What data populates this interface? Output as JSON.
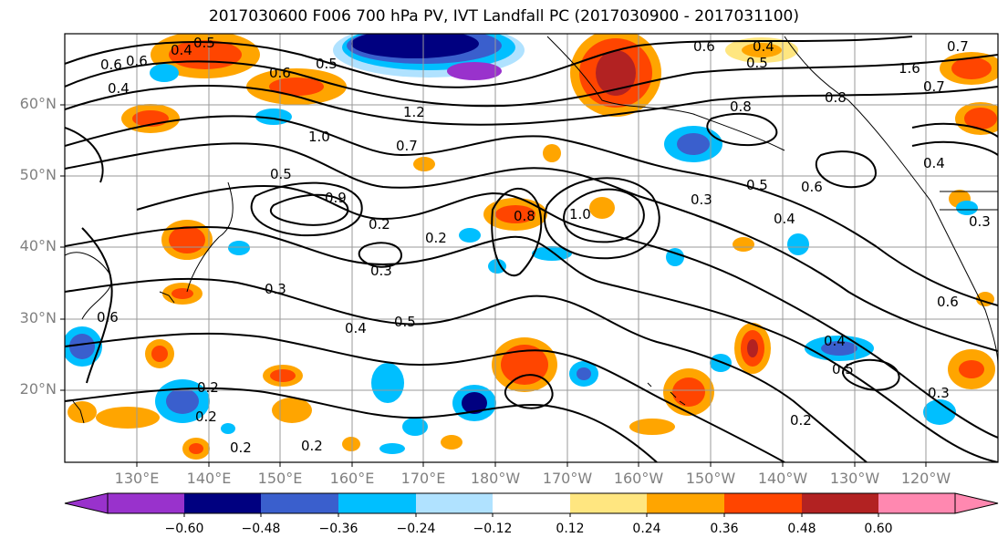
{
  "title": "2017030600 F006 700 hPa PV, IVT Landfall PC (2017030900 - 2017031100)",
  "lat_labels": [
    "60°N",
    "50°N",
    "40°N",
    "30°N",
    "20°N"
  ],
  "lon_labels": [
    "130°E",
    "140°E",
    "150°E",
    "160°E",
    "170°E",
    "180°W",
    "170°W",
    "160°W",
    "150°W",
    "140°W",
    "130°W",
    "120°W"
  ],
  "colorbar": {
    "tick_labels": [
      "−0.60",
      "−0.48",
      "−0.36",
      "−0.24",
      "−0.12",
      "0.12",
      "0.24",
      "0.36",
      "0.48",
      "0.60"
    ],
    "colors": [
      "#9932cc",
      "#000080",
      "#3a5fcd",
      "#00bfff",
      "#b0e2ff",
      "#ffffff",
      "#ffe680",
      "#ffa500",
      "#ff4500",
      "#b22222",
      "#ff88b0"
    ]
  },
  "contour_labels": [
    "0.5",
    "0.6",
    "0.4",
    "0.6",
    "0.5",
    "1.2",
    "1.0",
    "0.7",
    "0.5",
    "0.9",
    "0.2",
    "0.2",
    "0.3",
    "0.3",
    "0.5",
    "0.4",
    "0.2",
    "0.2",
    "0.2",
    "0.6",
    "1.0",
    "0.8",
    "0.3",
    "0.5",
    "0.6",
    "0.4",
    "0.4",
    "0.5",
    "0.3",
    "0.2",
    "0.6",
    "0.4",
    "0.7",
    "0.4",
    "0.6",
    "1.6",
    "0.7",
    "0.8",
    "0.8",
    "0.6",
    "0.5",
    "0.4",
    "0.3",
    "0.2"
  ]
}
